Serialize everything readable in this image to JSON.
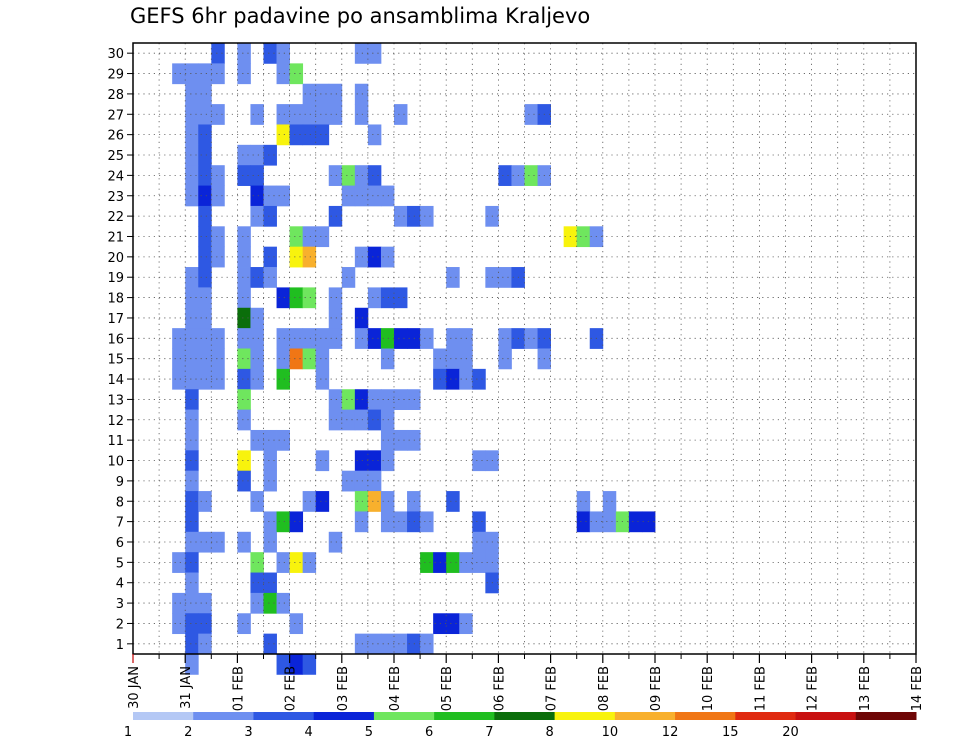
{
  "chart_data": {
    "type": "heatmap",
    "title": "GEFS 6hr padavine po ansamblima Kraljevo",
    "y_labels": [
      "1",
      "2",
      "3",
      "4",
      "5",
      "6",
      "7",
      "8",
      "9",
      "10",
      "11",
      "12",
      "13",
      "14",
      "15",
      "16",
      "17",
      "18",
      "19",
      "20",
      "21",
      "22",
      "23",
      "24",
      "25",
      "26",
      "27",
      "28",
      "29",
      "30"
    ],
    "ylim": [
      0.5,
      30.5
    ],
    "x_range_days": [
      0,
      15
    ],
    "x_labels": [
      "30 JAN",
      "31 JAN",
      "01 FEB",
      "02 FEB",
      "03 FEB",
      "04 FEB",
      "05 FEB",
      "06 FEB",
      "07 FEB",
      "08 FEB",
      "09 FEB",
      "10 FEB",
      "11 FEB",
      "12 FEB",
      "13 FEB",
      "14 FEB"
    ],
    "x_step_hours": 6,
    "colorbar": {
      "labels": [
        "1",
        "2",
        "3",
        "4",
        "5",
        "6",
        "7",
        "8",
        "10",
        "12",
        "15",
        "20"
      ],
      "colors": [
        "#b4c8f5",
        "#6e8ff0",
        "#2e58e3",
        "#0a24d8",
        "#6fe65e",
        "#20be20",
        "#0b6e0b",
        "#f8f30d",
        "#f8b02d",
        "#f07615",
        "#e02a10",
        "#c81010",
        "#6e0606"
      ]
    },
    "grid": true,
    "cells": [
      [
        7,
        30,
        1
      ],
      [
        5,
        30,
        2
      ],
      [
        9,
        30,
        2
      ],
      [
        10,
        30,
        1
      ],
      [
        16,
        30,
        1
      ],
      [
        17,
        30,
        1
      ],
      [
        2,
        29,
        1
      ],
      [
        3,
        29,
        1
      ],
      [
        4,
        29,
        1
      ],
      [
        5,
        29,
        1
      ],
      [
        7,
        29,
        1
      ],
      [
        10,
        29,
        1
      ],
      [
        11,
        29,
        4
      ],
      [
        3,
        28,
        1
      ],
      [
        4,
        28,
        1
      ],
      [
        12,
        28,
        1
      ],
      [
        13,
        28,
        1
      ],
      [
        14,
        28,
        1
      ],
      [
        16,
        28,
        1
      ],
      [
        3,
        27,
        1
      ],
      [
        4,
        27,
        1
      ],
      [
        5,
        27,
        1
      ],
      [
        8,
        27,
        1
      ],
      [
        10,
        27,
        1
      ],
      [
        11,
        27,
        1
      ],
      [
        12,
        27,
        1
      ],
      [
        13,
        27,
        1
      ],
      [
        14,
        27,
        1
      ],
      [
        16,
        27,
        1
      ],
      [
        19,
        27,
        1
      ],
      [
        29,
        27,
        1
      ],
      [
        30,
        27,
        2
      ],
      [
        3,
        26,
        1
      ],
      [
        4,
        26,
        2
      ],
      [
        10,
        26,
        7
      ],
      [
        11,
        26,
        2
      ],
      [
        12,
        26,
        2
      ],
      [
        13,
        26,
        2
      ],
      [
        17,
        26,
        1
      ],
      [
        3,
        25,
        1
      ],
      [
        4,
        25,
        2
      ],
      [
        7,
        25,
        1
      ],
      [
        8,
        25,
        1
      ],
      [
        9,
        25,
        2
      ],
      [
        3,
        24,
        1
      ],
      [
        4,
        24,
        2
      ],
      [
        5,
        24,
        1
      ],
      [
        7,
        24,
        2
      ],
      [
        8,
        24,
        2
      ],
      [
        14,
        24,
        1
      ],
      [
        15,
        24,
        4
      ],
      [
        16,
        24,
        1
      ],
      [
        17,
        24,
        2
      ],
      [
        27,
        24,
        2
      ],
      [
        28,
        24,
        1
      ],
      [
        29,
        24,
        4
      ],
      [
        30,
        24,
        1
      ],
      [
        3,
        23,
        1
      ],
      [
        4,
        23,
        3
      ],
      [
        5,
        23,
        1
      ],
      [
        8,
        23,
        3
      ],
      [
        9,
        23,
        1
      ],
      [
        10,
        23,
        1
      ],
      [
        15,
        23,
        1
      ],
      [
        16,
        23,
        1
      ],
      [
        17,
        23,
        1
      ],
      [
        18,
        23,
        1
      ],
      [
        4,
        22,
        2
      ],
      [
        8,
        22,
        1
      ],
      [
        9,
        22,
        2
      ],
      [
        14,
        22,
        2
      ],
      [
        19,
        22,
        1
      ],
      [
        20,
        22,
        2
      ],
      [
        21,
        22,
        1
      ],
      [
        26,
        22,
        1
      ],
      [
        4,
        21,
        2
      ],
      [
        5,
        21,
        1
      ],
      [
        7,
        21,
        1
      ],
      [
        11,
        21,
        4
      ],
      [
        12,
        21,
        1
      ],
      [
        13,
        21,
        1
      ],
      [
        32,
        21,
        7
      ],
      [
        33,
        21,
        4
      ],
      [
        34,
        21,
        1
      ],
      [
        4,
        20,
        2
      ],
      [
        5,
        20,
        1
      ],
      [
        7,
        20,
        1
      ],
      [
        9,
        20,
        2
      ],
      [
        11,
        20,
        7
      ],
      [
        12,
        20,
        8
      ],
      [
        16,
        20,
        1
      ],
      [
        17,
        20,
        3
      ],
      [
        18,
        20,
        1
      ],
      [
        3,
        19,
        1
      ],
      [
        4,
        19,
        2
      ],
      [
        7,
        19,
        1
      ],
      [
        8,
        19,
        2
      ],
      [
        9,
        19,
        1
      ],
      [
        15,
        19,
        1
      ],
      [
        23,
        19,
        1
      ],
      [
        26,
        19,
        1
      ],
      [
        27,
        19,
        1
      ],
      [
        28,
        19,
        2
      ],
      [
        3,
        18,
        1
      ],
      [
        4,
        18,
        1
      ],
      [
        7,
        18,
        1
      ],
      [
        10,
        18,
        3
      ],
      [
        11,
        18,
        5
      ],
      [
        12,
        18,
        4
      ],
      [
        14,
        18,
        1
      ],
      [
        17,
        18,
        1
      ],
      [
        18,
        18,
        2
      ],
      [
        19,
        18,
        2
      ],
      [
        3,
        17,
        1
      ],
      [
        4,
        17,
        1
      ],
      [
        7,
        17,
        6
      ],
      [
        8,
        17,
        1
      ],
      [
        14,
        17,
        1
      ],
      [
        16,
        17,
        3
      ],
      [
        2,
        16,
        1
      ],
      [
        3,
        16,
        1
      ],
      [
        4,
        16,
        1
      ],
      [
        5,
        16,
        1
      ],
      [
        7,
        16,
        1
      ],
      [
        8,
        16,
        1
      ],
      [
        10,
        16,
        1
      ],
      [
        11,
        16,
        1
      ],
      [
        12,
        16,
        1
      ],
      [
        13,
        16,
        1
      ],
      [
        14,
        16,
        1
      ],
      [
        16,
        16,
        1
      ],
      [
        17,
        16,
        3
      ],
      [
        18,
        16,
        5
      ],
      [
        19,
        16,
        3
      ],
      [
        20,
        16,
        3
      ],
      [
        21,
        16,
        1
      ],
      [
        23,
        16,
        1
      ],
      [
        24,
        16,
        1
      ],
      [
        27,
        16,
        1
      ],
      [
        28,
        16,
        2
      ],
      [
        29,
        16,
        1
      ],
      [
        30,
        16,
        2
      ],
      [
        34,
        16,
        2
      ],
      [
        2,
        15,
        1
      ],
      [
        3,
        15,
        1
      ],
      [
        4,
        15,
        1
      ],
      [
        5,
        15,
        1
      ],
      [
        7,
        15,
        4
      ],
      [
        8,
        15,
        1
      ],
      [
        10,
        15,
        1
      ],
      [
        11,
        15,
        9
      ],
      [
        12,
        15,
        4
      ],
      [
        13,
        15,
        1
      ],
      [
        18,
        15,
        1
      ],
      [
        22,
        15,
        1
      ],
      [
        23,
        15,
        1
      ],
      [
        24,
        15,
        1
      ],
      [
        27,
        15,
        1
      ],
      [
        30,
        15,
        1
      ],
      [
        2,
        14,
        1
      ],
      [
        3,
        14,
        1
      ],
      [
        4,
        14,
        1
      ],
      [
        5,
        14,
        1
      ],
      [
        7,
        14,
        2
      ],
      [
        8,
        14,
        1
      ],
      [
        10,
        14,
        5
      ],
      [
        13,
        14,
        1
      ],
      [
        22,
        14,
        2
      ],
      [
        23,
        14,
        3
      ],
      [
        24,
        14,
        1
      ],
      [
        25,
        14,
        2
      ],
      [
        3,
        13,
        2
      ],
      [
        7,
        13,
        4
      ],
      [
        14,
        13,
        1
      ],
      [
        15,
        13,
        4
      ],
      [
        16,
        13,
        3
      ],
      [
        17,
        13,
        1
      ],
      [
        18,
        13,
        1
      ],
      [
        19,
        13,
        1
      ],
      [
        20,
        13,
        1
      ],
      [
        3,
        12,
        1
      ],
      [
        7,
        12,
        1
      ],
      [
        14,
        12,
        1
      ],
      [
        15,
        12,
        1
      ],
      [
        16,
        12,
        1
      ],
      [
        17,
        12,
        2
      ],
      [
        18,
        12,
        1
      ],
      [
        3,
        11,
        1
      ],
      [
        8,
        11,
        1
      ],
      [
        9,
        11,
        1
      ],
      [
        10,
        11,
        1
      ],
      [
        18,
        11,
        1
      ],
      [
        19,
        11,
        1
      ],
      [
        20,
        11,
        1
      ],
      [
        3,
        10,
        2
      ],
      [
        7,
        10,
        7
      ],
      [
        9,
        10,
        1
      ],
      [
        13,
        10,
        1
      ],
      [
        16,
        10,
        3
      ],
      [
        17,
        10,
        3
      ],
      [
        18,
        10,
        1
      ],
      [
        25,
        10,
        1
      ],
      [
        26,
        10,
        1
      ],
      [
        3,
        9,
        1
      ],
      [
        7,
        9,
        2
      ],
      [
        9,
        9,
        1
      ],
      [
        15,
        9,
        1
      ],
      [
        16,
        9,
        1
      ],
      [
        17,
        9,
        1
      ],
      [
        3,
        8,
        2
      ],
      [
        4,
        8,
        1
      ],
      [
        8,
        8,
        1
      ],
      [
        12,
        8,
        1
      ],
      [
        13,
        8,
        3
      ],
      [
        16,
        8,
        4
      ],
      [
        17,
        8,
        8
      ],
      [
        18,
        8,
        1
      ],
      [
        20,
        8,
        1
      ],
      [
        23,
        8,
        2
      ],
      [
        33,
        8,
        1
      ],
      [
        35,
        8,
        1
      ],
      [
        3,
        7,
        2
      ],
      [
        9,
        7,
        1
      ],
      [
        10,
        7,
        5
      ],
      [
        11,
        7,
        3
      ],
      [
        16,
        7,
        1
      ],
      [
        18,
        7,
        1
      ],
      [
        19,
        7,
        1
      ],
      [
        20,
        7,
        2
      ],
      [
        21,
        7,
        1
      ],
      [
        25,
        7,
        2
      ],
      [
        33,
        7,
        3
      ],
      [
        34,
        7,
        1
      ],
      [
        35,
        7,
        1
      ],
      [
        36,
        7,
        4
      ],
      [
        37,
        7,
        3
      ],
      [
        38,
        7,
        3
      ],
      [
        3,
        6,
        1
      ],
      [
        4,
        6,
        1
      ],
      [
        5,
        6,
        1
      ],
      [
        7,
        6,
        1
      ],
      [
        9,
        6,
        1
      ],
      [
        14,
        6,
        1
      ],
      [
        25,
        6,
        1
      ],
      [
        26,
        6,
        1
      ],
      [
        2,
        5,
        1
      ],
      [
        3,
        5,
        2
      ],
      [
        8,
        5,
        4
      ],
      [
        10,
        5,
        1
      ],
      [
        11,
        5,
        7
      ],
      [
        12,
        5,
        1
      ],
      [
        21,
        5,
        5
      ],
      [
        22,
        5,
        3
      ],
      [
        23,
        5,
        5
      ],
      [
        24,
        5,
        1
      ],
      [
        25,
        5,
        1
      ],
      [
        26,
        5,
        1
      ],
      [
        3,
        4,
        1
      ],
      [
        8,
        4,
        2
      ],
      [
        9,
        4,
        2
      ],
      [
        26,
        4,
        2
      ],
      [
        2,
        3,
        1
      ],
      [
        3,
        3,
        1
      ],
      [
        4,
        3,
        1
      ],
      [
        8,
        3,
        1
      ],
      [
        9,
        3,
        5
      ],
      [
        10,
        3,
        1
      ],
      [
        2,
        2,
        1
      ],
      [
        3,
        2,
        2
      ],
      [
        4,
        2,
        2
      ],
      [
        7,
        2,
        1
      ],
      [
        11,
        2,
        1
      ],
      [
        22,
        2,
        3
      ],
      [
        23,
        2,
        3
      ],
      [
        24,
        2,
        1
      ],
      [
        3,
        1,
        2
      ],
      [
        4,
        1,
        1
      ],
      [
        9,
        1,
        2
      ],
      [
        16,
        1,
        1
      ],
      [
        17,
        1,
        1
      ],
      [
        18,
        1,
        1
      ],
      [
        19,
        1,
        1
      ],
      [
        20,
        1,
        2
      ],
      [
        21,
        1,
        1
      ],
      [
        3,
        0,
        1
      ],
      [
        10,
        0,
        2
      ],
      [
        11,
        0,
        3
      ],
      [
        12,
        0,
        2
      ]
    ]
  }
}
